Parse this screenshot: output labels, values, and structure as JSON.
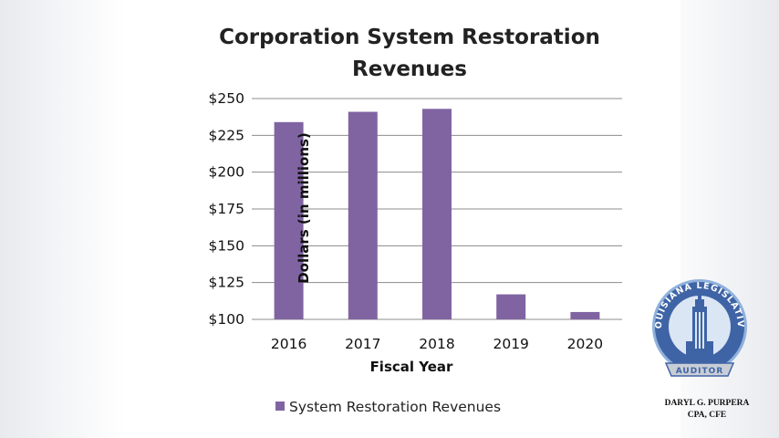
{
  "chart_data": {
    "type": "bar",
    "title_lines": [
      "Corporation System Restoration",
      "Revenues"
    ],
    "xlabel": "Fiscal Year",
    "ylabel": "Dollars (in millions)",
    "categories": [
      "2016",
      "2017",
      "2018",
      "2019",
      "2020"
    ],
    "series": [
      {
        "name": "System Restoration Revenues",
        "values": [
          234,
          241,
          243,
          117,
          105
        ]
      }
    ],
    "ylim": [
      100,
      250
    ],
    "yticks": [
      "$250",
      "$225",
      "$200",
      "$175",
      "$150",
      "$125",
      "$100"
    ],
    "grid": true,
    "legend": "bottom",
    "bar_color": "#8064a2"
  },
  "logo": {
    "ring_text": "LOUISIANA LEGISLATIVE",
    "banner_text": "AUDITOR",
    "colors": {
      "blue": "#3f64a6",
      "light_blue": "#8fb1dc",
      "gray": "#c9ced6"
    }
  },
  "signature": {
    "name": "DARYL G. PURPERA",
    "credentials": "CPA, CFE"
  }
}
